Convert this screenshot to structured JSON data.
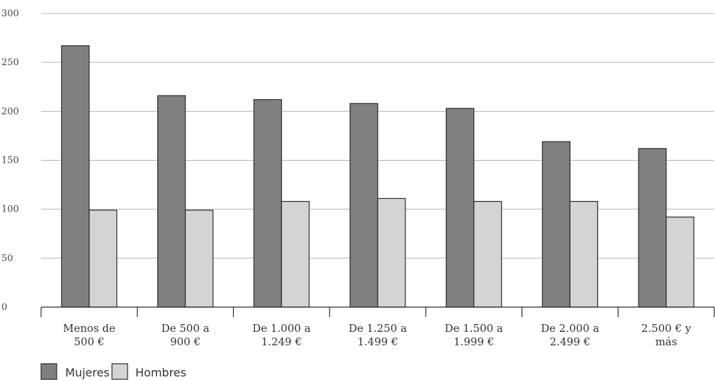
{
  "chart_data": {
    "type": "bar",
    "categories": [
      [
        "Menos de",
        "500 €"
      ],
      [
        "De 500 a",
        "900 €"
      ],
      [
        "De 1.000 a",
        "1.249 €"
      ],
      [
        "De 1.250 a",
        "1.499 €"
      ],
      [
        "De 1.500 a",
        "1.999 €"
      ],
      [
        "De 2.000 a",
        "2.499 €"
      ],
      [
        "2.500 € y",
        "más"
      ]
    ],
    "series": [
      {
        "name": "Mujeres",
        "values": [
          267,
          216,
          212,
          208,
          203,
          169,
          162
        ],
        "color": "#808083"
      },
      {
        "name": "Hombres",
        "values": [
          99,
          99,
          108,
          111,
          108,
          108,
          92
        ],
        "color": "#d3d4d6"
      }
    ],
    "title": "",
    "xlabel": "",
    "ylabel": "",
    "ylim": [
      0,
      300
    ],
    "yticks": [
      0,
      50,
      100,
      150,
      200,
      250,
      300
    ],
    "grid": true,
    "legend": "bottom-left"
  }
}
